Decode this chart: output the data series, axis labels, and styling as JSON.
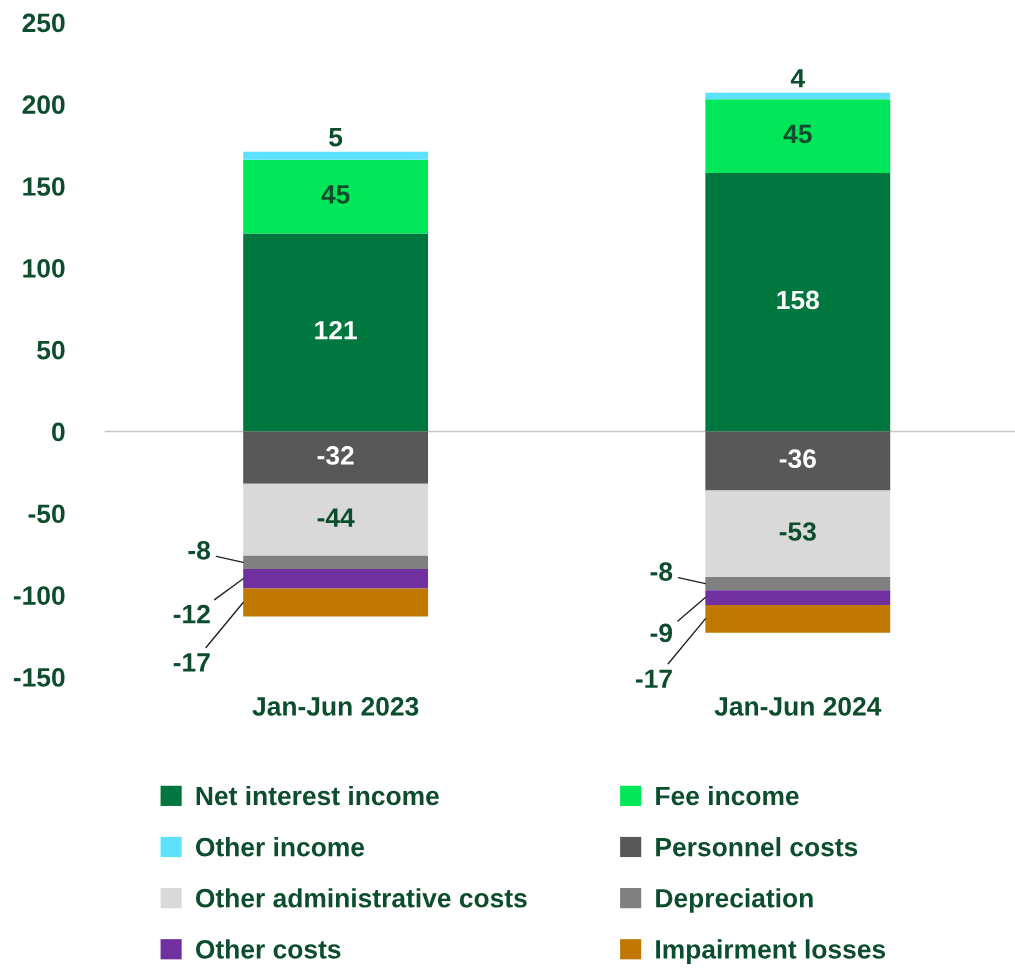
{
  "chart_data": {
    "type": "bar",
    "stacked": true,
    "categories": [
      "Jan-Jun 2023",
      "Jan-Jun 2024"
    ],
    "series": [
      {
        "name": "Net interest income",
        "color": "#00773f",
        "values": [
          121,
          158
        ]
      },
      {
        "name": "Fee income",
        "color": "#00e85a",
        "values": [
          45,
          45
        ]
      },
      {
        "name": "Other income",
        "color": "#5ee0ff",
        "values": [
          5,
          4
        ]
      },
      {
        "name": "Personnel costs",
        "color": "#585858",
        "values": [
          -32,
          -36
        ]
      },
      {
        "name": "Other administrative costs",
        "color": "#d9d9d9",
        "values": [
          -44,
          -53
        ]
      },
      {
        "name": "Depreciation",
        "color": "#808080",
        "values": [
          -8,
          -8
        ]
      },
      {
        "name": "Other costs",
        "color": "#7030a0",
        "values": [
          -12,
          -9
        ]
      },
      {
        "name": "Impairment losses",
        "color": "#c07800",
        "values": [
          -17,
          -17
        ]
      }
    ],
    "ylim": [
      -150,
      250
    ],
    "yticks": [
      -150,
      -100,
      -50,
      0,
      50,
      100,
      150,
      200,
      250
    ],
    "ref_lines": [
      {
        "axis": "y",
        "value": 0,
        "color": "#c8c8c8"
      }
    ],
    "data_labels": true,
    "grid": false,
    "legend": "bottom"
  }
}
